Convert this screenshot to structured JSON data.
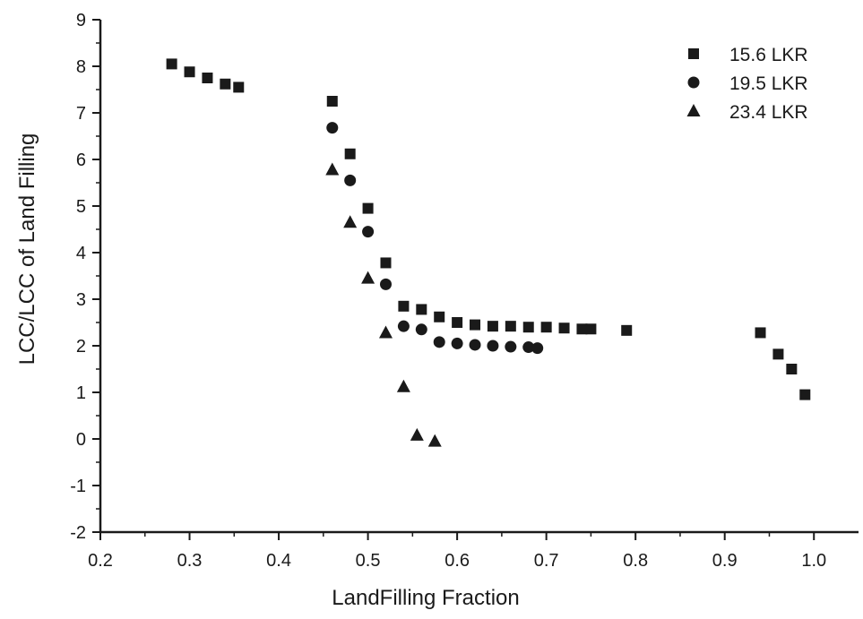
{
  "chart_data": {
    "type": "scatter",
    "title": "",
    "xlabel": "LandFilling Fraction",
    "ylabel": "LCC/LCC of Land Filling",
    "xlim": [
      0.2,
      1.05
    ],
    "ylim": [
      -2,
      9
    ],
    "x_ticks": [
      "0.2",
      "0.3",
      "0.4",
      "0.5",
      "0.6",
      "0.7",
      "0.8",
      "0.9",
      "1.0"
    ],
    "y_ticks": [
      "-2",
      "-1",
      "0",
      "1",
      "2",
      "3",
      "4",
      "5",
      "6",
      "7",
      "8",
      "9"
    ],
    "grid": false,
    "legend_position": "top-right",
    "series": [
      {
        "name": "15.6 LKR",
        "marker": "square",
        "color": "#1a1a1a",
        "points": [
          [
            0.28,
            8.05
          ],
          [
            0.3,
            7.88
          ],
          [
            0.32,
            7.75
          ],
          [
            0.34,
            7.62
          ],
          [
            0.355,
            7.55
          ],
          [
            0.46,
            7.25
          ],
          [
            0.48,
            6.12
          ],
          [
            0.5,
            4.95
          ],
          [
            0.52,
            3.78
          ],
          [
            0.54,
            2.85
          ],
          [
            0.56,
            2.78
          ],
          [
            0.58,
            2.62
          ],
          [
            0.6,
            2.5
          ],
          [
            0.62,
            2.45
          ],
          [
            0.64,
            2.42
          ],
          [
            0.66,
            2.42
          ],
          [
            0.68,
            2.4
          ],
          [
            0.7,
            2.4
          ],
          [
            0.72,
            2.38
          ],
          [
            0.74,
            2.36
          ],
          [
            0.75,
            2.36
          ],
          [
            0.79,
            2.33
          ],
          [
            0.94,
            2.28
          ],
          [
            0.96,
            1.82
          ],
          [
            0.975,
            1.5
          ],
          [
            0.99,
            0.95
          ]
        ]
      },
      {
        "name": "19.5 LKR",
        "marker": "circle",
        "color": "#1a1a1a",
        "points": [
          [
            0.46,
            6.68
          ],
          [
            0.48,
            5.55
          ],
          [
            0.5,
            4.45
          ],
          [
            0.52,
            3.32
          ],
          [
            0.54,
            2.42
          ],
          [
            0.56,
            2.35
          ],
          [
            0.58,
            2.08
          ],
          [
            0.6,
            2.05
          ],
          [
            0.62,
            2.02
          ],
          [
            0.64,
            2.0
          ],
          [
            0.66,
            1.98
          ],
          [
            0.68,
            1.97
          ],
          [
            0.69,
            1.95
          ]
        ]
      },
      {
        "name": "23.4 LKR",
        "marker": "triangle",
        "color": "#1a1a1a",
        "points": [
          [
            0.46,
            5.78
          ],
          [
            0.48,
            4.65
          ],
          [
            0.5,
            3.45
          ],
          [
            0.52,
            2.28
          ],
          [
            0.54,
            1.12
          ],
          [
            0.555,
            0.08
          ],
          [
            0.575,
            -0.05
          ]
        ]
      }
    ]
  }
}
